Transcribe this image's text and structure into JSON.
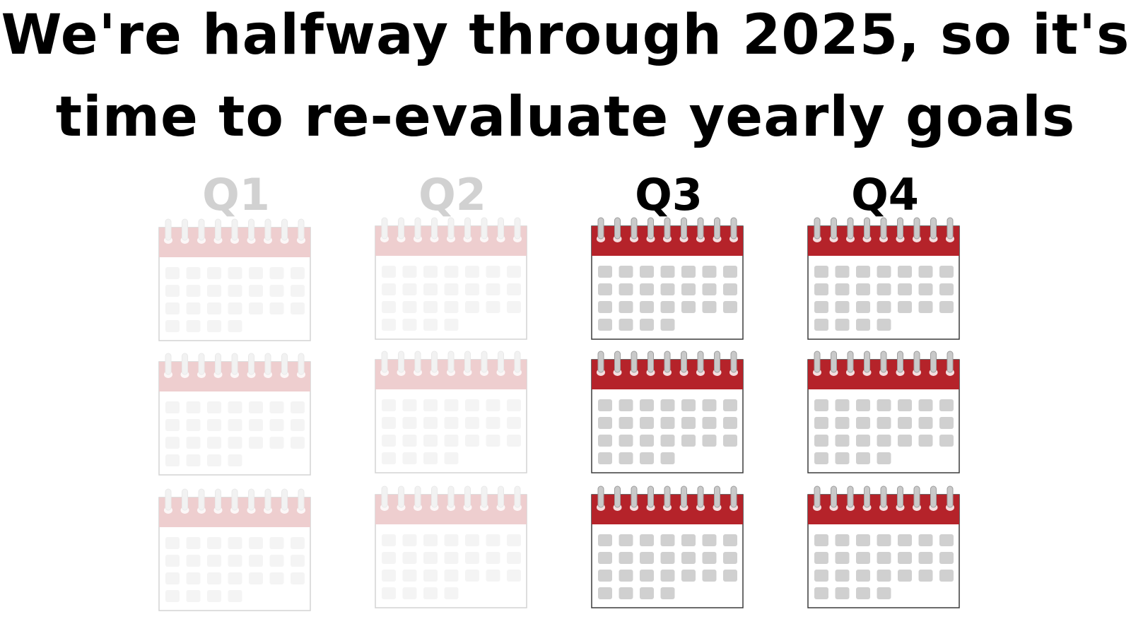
{
  "headline": {
    "line1": "We're halfway through 2025, so it's",
    "line2": "time to re-evaluate yearly goals"
  },
  "quarters": [
    {
      "label": "Q1",
      "state": "past",
      "months": 3
    },
    {
      "label": "Q2",
      "state": "past",
      "months": 3
    },
    {
      "label": "Q3",
      "state": "upcoming",
      "months": 3
    },
    {
      "label": "Q4",
      "state": "upcoming",
      "months": 3
    }
  ],
  "calendar_icon": {
    "name": "calendar-icon",
    "header_color": "#b5232a",
    "day_color": "#d0d0d0",
    "ring_color": "#9e9e9e",
    "border_color": "#3a3a3a",
    "day_cells": 25
  }
}
